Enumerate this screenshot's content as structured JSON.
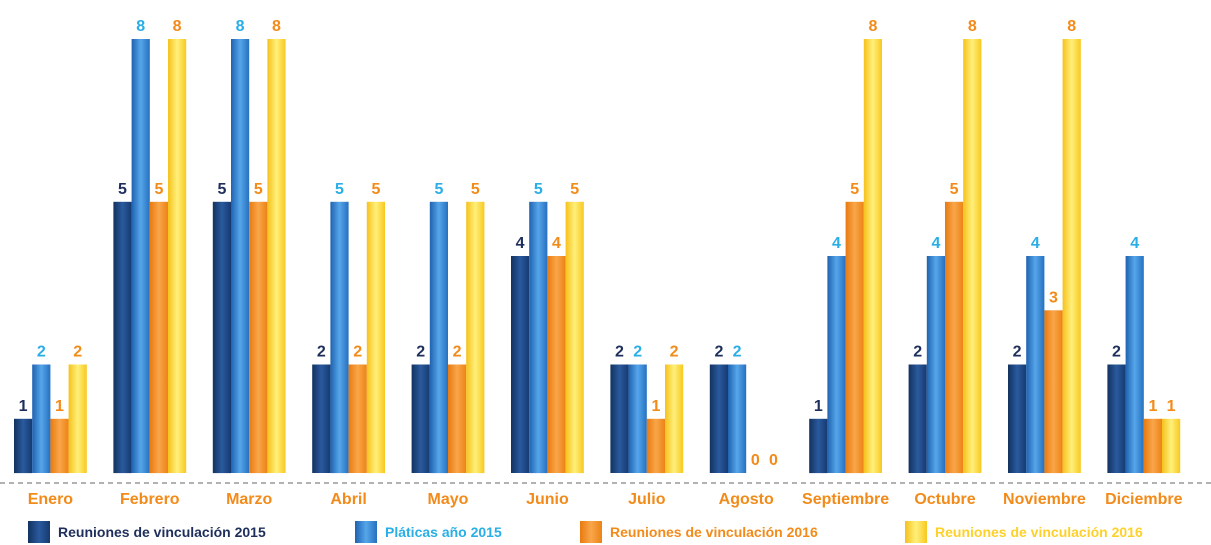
{
  "chart_data": {
    "type": "bar",
    "categories": [
      "Enero",
      "Febrero",
      "Marzo",
      "Abril",
      "Mayo",
      "Junio",
      "Julio",
      "Agosto",
      "Septiembre",
      "Octubre",
      "Noviembre",
      "Diciembre"
    ],
    "series": [
      {
        "name": "Reuniones de vinculación 2015",
        "values": [
          1,
          5,
          5,
          2,
          2,
          4,
          2,
          2,
          1,
          2,
          2,
          2
        ],
        "color": "#1e3f7c",
        "label_color": "#1e2f5c"
      },
      {
        "name": "Pláticas año 2015",
        "values": [
          2,
          8,
          8,
          5,
          5,
          5,
          2,
          2,
          4,
          4,
          4,
          4
        ],
        "color": "#2f7fce",
        "label_color": "#29aee6"
      },
      {
        "name": "Reuniones de vinculación 2016",
        "values": [
          1,
          5,
          5,
          2,
          2,
          4,
          1,
          0,
          5,
          5,
          3,
          1
        ],
        "color": "#f28b1a",
        "label_color": "#f28b1a"
      },
      {
        "name": "Reuniones de vinculación 2016",
        "values": [
          2,
          8,
          8,
          5,
          5,
          5,
          2,
          0,
          8,
          8,
          8,
          1
        ],
        "color": "#fdd12a",
        "label_color": "#f28b1a"
      }
    ],
    "ylim": [
      0,
      8
    ],
    "grid": false,
    "legend_position": "bottom",
    "month_label_color": "#f28b1a"
  }
}
